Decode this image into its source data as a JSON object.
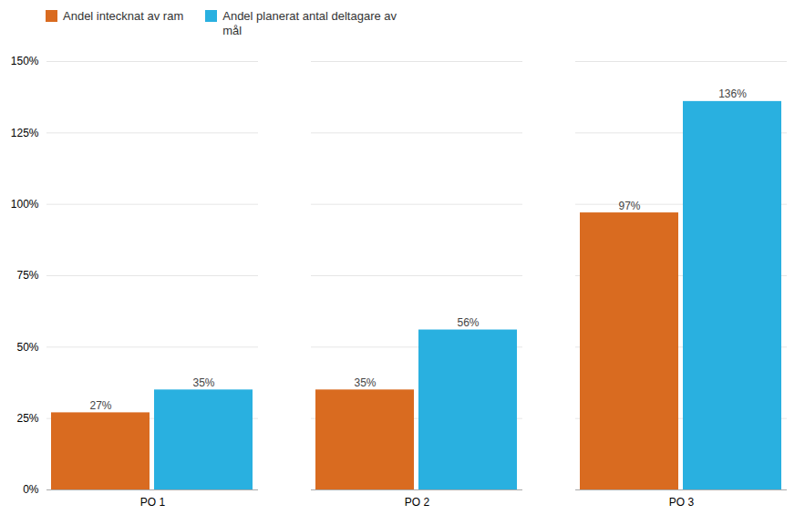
{
  "chart_data": {
    "type": "bar",
    "categories": [
      "PO 1",
      "PO 2",
      "PO 3"
    ],
    "series": [
      {
        "name": "Andel intecknat av ram",
        "color": "#D96B20",
        "values": [
          0.27,
          0.35,
          0.97
        ],
        "value_labels": [
          "27%",
          "35%",
          "97%"
        ]
      },
      {
        "name": "Andel planerat antal deltagare av\nmål",
        "color": "#29B0E0",
        "values": [
          0.35,
          0.56,
          1.36
        ],
        "value_labels": [
          "35%",
          "56%",
          "136%"
        ]
      }
    ],
    "ylim": [
      0,
      1.5
    ],
    "yticks": [
      {
        "value": 0,
        "label": "0%"
      },
      {
        "value": 0.25,
        "label": "25%"
      },
      {
        "value": 0.5,
        "label": "50%"
      },
      {
        "value": 0.75,
        "label": "75%"
      },
      {
        "value": 1.0,
        "label": "100%"
      },
      {
        "value": 1.25,
        "label": "125%"
      },
      {
        "value": 1.5,
        "label": "150%"
      }
    ],
    "grid": true,
    "legend": "upper left",
    "data_labels": true
  }
}
